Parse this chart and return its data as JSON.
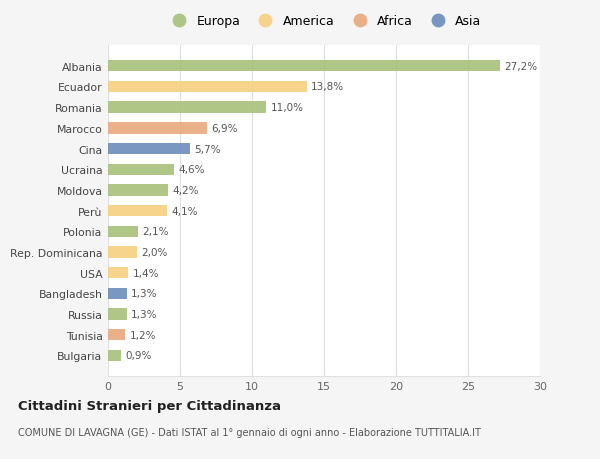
{
  "countries": [
    "Albania",
    "Ecuador",
    "Romania",
    "Marocco",
    "Cina",
    "Ucraina",
    "Moldova",
    "Perù",
    "Polonia",
    "Rep. Dominicana",
    "USA",
    "Bangladesh",
    "Russia",
    "Tunisia",
    "Bulgaria"
  ],
  "values": [
    27.2,
    13.8,
    11.0,
    6.9,
    5.7,
    4.6,
    4.2,
    4.1,
    2.1,
    2.0,
    1.4,
    1.3,
    1.3,
    1.2,
    0.9
  ],
  "labels": [
    "27,2%",
    "13,8%",
    "11,0%",
    "6,9%",
    "5,7%",
    "4,6%",
    "4,2%",
    "4,1%",
    "2,1%",
    "2,0%",
    "1,4%",
    "1,3%",
    "1,3%",
    "1,2%",
    "0,9%"
  ],
  "continents": [
    "Europa",
    "America",
    "Europa",
    "Africa",
    "Asia",
    "Europa",
    "Europa",
    "America",
    "Europa",
    "America",
    "America",
    "Asia",
    "Europa",
    "Africa",
    "Europa"
  ],
  "colors": {
    "Europa": "#a8c07a",
    "America": "#f5d080",
    "Africa": "#e8a87c",
    "Asia": "#6b8cba"
  },
  "legend_order": [
    "Europa",
    "America",
    "Africa",
    "Asia"
  ],
  "title": "Cittadini Stranieri per Cittadinanza",
  "subtitle": "COMUNE DI LAVAGNA (GE) - Dati ISTAT al 1° gennaio di ogni anno - Elaborazione TUTTITALIA.IT",
  "xlim": [
    0,
    30
  ],
  "xticks": [
    0,
    5,
    10,
    15,
    20,
    25,
    30
  ],
  "background_color": "#f5f5f5",
  "bar_background": "#ffffff",
  "grid_color": "#e0e0e0"
}
